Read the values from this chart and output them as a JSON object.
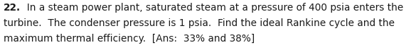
{
  "line1_bold": "22.",
  "line1_rest": "  In a steam power plant, saturated steam at a pressure of 400 psia enters the",
  "line2": "turbine.  The condenser pressure is 1 psia.  Find the ideal Rankine cycle and the",
  "line3": "maximum thermal efficiency.  [Ans:  33% and 38%]",
  "background_color": "#ffffff",
  "text_color": "#1a1a1a",
  "fontsize": 9.8,
  "figwidth": 5.78,
  "figheight": 0.71,
  "dpi": 100,
  "font_family": "Arial"
}
